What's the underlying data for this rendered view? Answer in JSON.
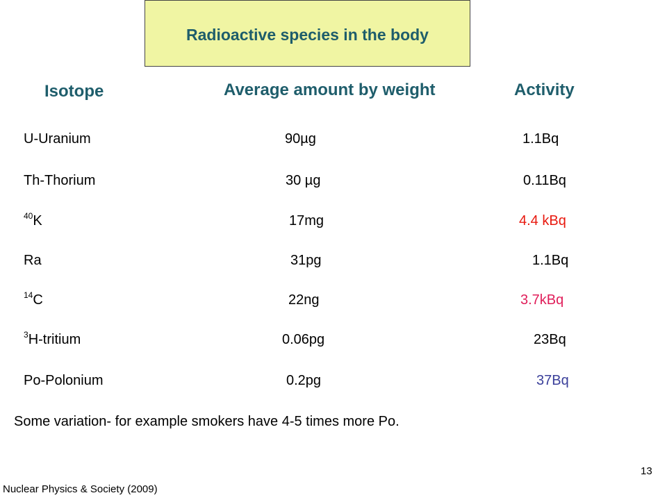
{
  "slide": {
    "title": "Radioactive species in the body",
    "headers": {
      "isotope": "Isotope",
      "amount": "Average amount by weight",
      "activity": "Activity"
    },
    "rows": [
      {
        "sup": "",
        "isotope": "U-Uranium",
        "amount": "90µg",
        "activity": "1.1Bq",
        "activity_color": "#000000"
      },
      {
        "sup": "",
        "isotope": "Th-Thorium",
        "amount": "30 µg",
        "activity": "0.11Bq",
        "activity_color": "#000000"
      },
      {
        "sup": "40",
        "isotope": "K",
        "amount": "17mg",
        "activity": "4.4 kBq",
        "activity_color": "#e8190f"
      },
      {
        "sup": "",
        "isotope": "Ra",
        "amount": "31pg",
        "activity": "1.1Bq",
        "activity_color": "#000000"
      },
      {
        "sup": "14",
        "isotope": "C",
        "amount": "22ng",
        "activity": "3.7kBq",
        "activity_color": "#e01e5a"
      },
      {
        "sup": "3",
        "isotope": "H-tritium",
        "amount": "0.06pg",
        "activity": "23Bq",
        "activity_color": "#000000"
      },
      {
        "sup": "",
        "isotope": "Po-Polonium",
        "amount": "0.2pg",
        "activity": "37Bq",
        "activity_color": "#3a3f9a"
      }
    ],
    "note": "Some variation- for example smokers have 4-5 times more Po.",
    "footer": "Nuclear Physics & Society (2009)",
    "page_number": "13"
  },
  "colors": {
    "title_bg": "#f0f5a3",
    "heading": "#1e5d6b"
  }
}
